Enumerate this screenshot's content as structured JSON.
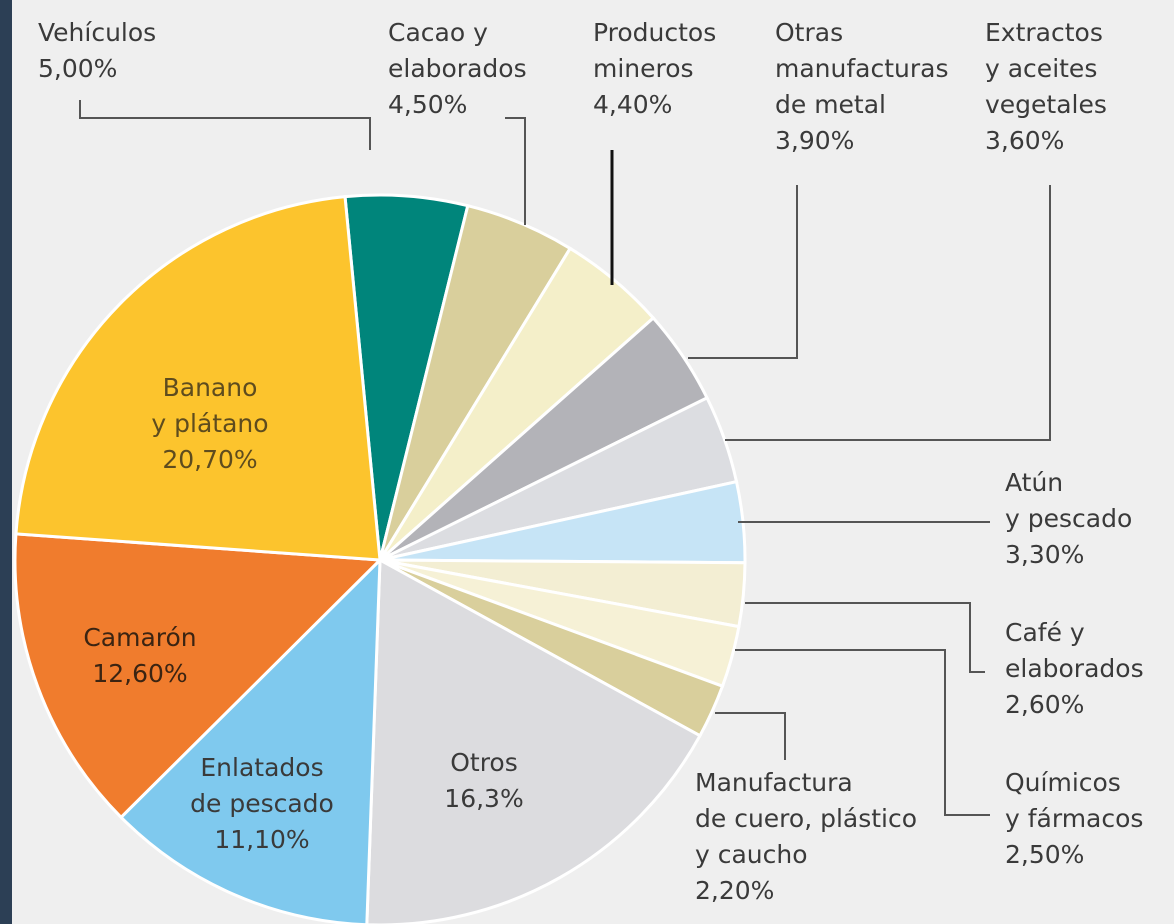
{
  "chart_data": {
    "type": "pie",
    "categories": [
      "Vehículos",
      "Cacao y\nelaborados",
      "Productos\nmineros",
      "Otras\nmanufacturas\nde metal",
      "Extractos\ny aceites\nvegetales",
      "Atún\ny pescado",
      "Café y\nelaborados",
      "Químicos\ny fármacos",
      "Manufactura\nde cuero, plástico\ny caucho",
      "Otros",
      "Enlatados\nde pescado",
      "Camarón",
      "Banano\ny plátano"
    ],
    "values": [
      5.0,
      4.5,
      4.4,
      3.9,
      3.6,
      3.3,
      2.6,
      2.5,
      2.2,
      16.3,
      11.1,
      12.6,
      20.7
    ],
    "value_labels": [
      "5,00%",
      "4,50%",
      "4,40%",
      "3,90%",
      "3,60%",
      "3,30%",
      "2,60%",
      "2,50%",
      "2,20%",
      "16,3%",
      "11,10%",
      "12,60%",
      "20,70%"
    ],
    "colors": [
      "#00857b",
      "#d9cf9c",
      "#f4efc9",
      "#b3b3b8",
      "#dcdde1",
      "#c6e4f6",
      "#f3eed3",
      "#f6f1d6",
      "#d9cf9c",
      "#dcdcdf",
      "#7fc9ee",
      "#f07c2d",
      "#fcc42d"
    ]
  }
}
